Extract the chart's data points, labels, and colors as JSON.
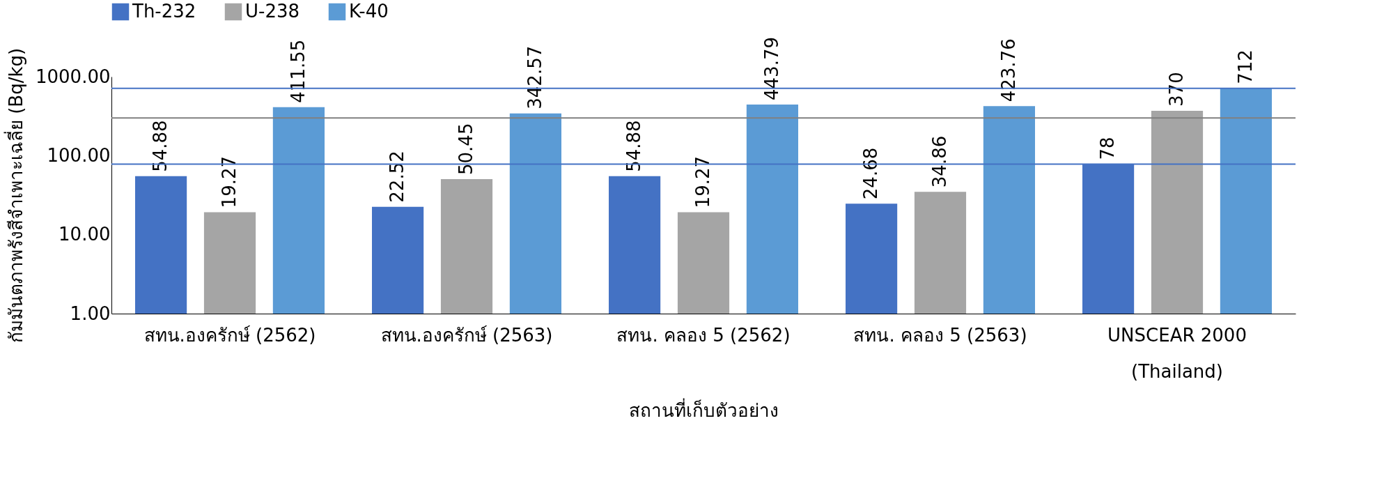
{
  "chart_data": {
    "type": "bar",
    "xlabel": "สถานที่เก็บตัวอย่าง",
    "ylabel": "กัมมันตภาพรังสีจำเพาะเฉลี่ย (Bq/kg)",
    "categories": [
      "สทน.องครักษ์ (2562)",
      "สทน.องครักษ์ (2563)",
      "สทน. คลอง 5 (2562)",
      "สทน. คลอง 5 (2563)",
      "UNSCEAR 2000\n(Thailand)"
    ],
    "series": [
      {
        "name": "Th-232",
        "color": "#4472c4",
        "values": [
          54.88,
          22.52,
          54.88,
          24.68,
          78
        ]
      },
      {
        "name": "U-238",
        "color": "#a5a5a5",
        "values": [
          19.27,
          50.45,
          19.27,
          34.86,
          370
        ]
      },
      {
        "name": "K-40",
        "color": "#5b9bd5",
        "values": [
          411.55,
          342.57,
          443.79,
          423.76,
          712
        ]
      }
    ],
    "log": true,
    "ylim": [
      1,
      1000
    ],
    "yticks": [
      {
        "value": 1,
        "label": "1.00"
      },
      {
        "value": 10,
        "label": "10.00"
      },
      {
        "value": 100,
        "label": "100.00"
      },
      {
        "value": 1000,
        "label": "1000.00"
      }
    ],
    "ref_lines": [
      {
        "axis": "y",
        "value": 712,
        "color": "#4472c4"
      },
      {
        "axis": "y",
        "value": 300,
        "color": "#808080"
      },
      {
        "axis": "y",
        "value": 78,
        "color": "#4472c4"
      }
    ],
    "data_labels": true,
    "grid": false,
    "legend": "top"
  }
}
